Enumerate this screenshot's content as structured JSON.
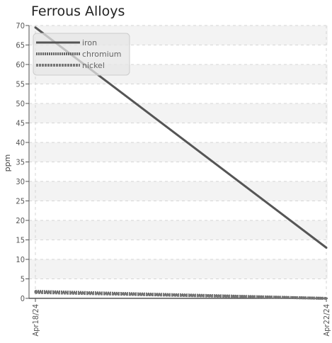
{
  "chart_data": {
    "type": "line",
    "title": "Ferrous Alloys",
    "xlabel": "",
    "ylabel": "ppm",
    "categories": [
      "Apr18/24",
      "Apr22/24"
    ],
    "ylim": [
      0,
      70
    ],
    "yticks": [
      0,
      5,
      10,
      15,
      20,
      25,
      30,
      35,
      40,
      45,
      50,
      55,
      60,
      65,
      70
    ],
    "grid": true,
    "legend_position": "top-left",
    "series": [
      {
        "name": "iron",
        "values": [
          69.5,
          13
        ],
        "color": "#555555",
        "style": "solid"
      },
      {
        "name": "chromium",
        "values": [
          1.8,
          0
        ],
        "color": "#666666",
        "style": "dotted"
      },
      {
        "name": "nickel",
        "values": [
          1.5,
          0
        ],
        "color": "#777777",
        "style": "dashed"
      }
    ]
  }
}
